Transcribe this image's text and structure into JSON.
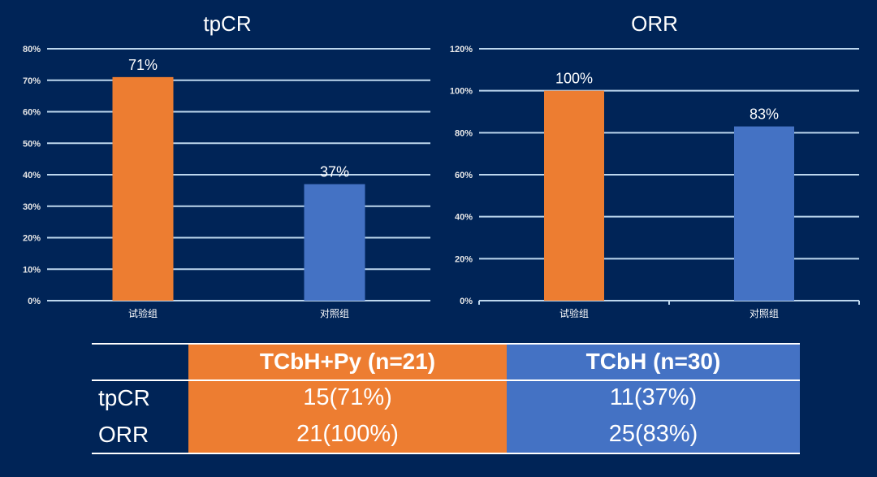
{
  "chart_data": [
    {
      "type": "bar",
      "title": "tpCR",
      "categories": [
        "试验组",
        "对照组"
      ],
      "values": [
        71,
        37
      ],
      "data_labels": [
        "71%",
        "37%"
      ],
      "colors": [
        "#ED7D31",
        "#4472C4"
      ],
      "ylim": [
        0,
        80
      ],
      "yticks": [
        "0%",
        "10%",
        "20%",
        "30%",
        "40%",
        "50%",
        "60%",
        "70%",
        "80%"
      ],
      "grid": true,
      "xlabel": "",
      "ylabel": ""
    },
    {
      "type": "bar",
      "title": "ORR",
      "categories": [
        "试验组",
        "对照组"
      ],
      "values": [
        100,
        83
      ],
      "data_labels": [
        "100%",
        "83%"
      ],
      "colors": [
        "#ED7D31",
        "#4472C4"
      ],
      "ylim": [
        0,
        120
      ],
      "yticks": [
        "0%",
        "20%",
        "40%",
        "60%",
        "80%",
        "100%",
        "120%"
      ],
      "grid": true,
      "xlabel": "",
      "ylabel": ""
    }
  ],
  "table": {
    "headers": [
      "",
      "TCbH+Py (n=21)",
      "TCbH (n=30)"
    ],
    "rows": [
      [
        "tpCR",
        "15(71%)",
        "11(37%)"
      ],
      [
        "ORR",
        "21(100%)",
        "25(83%)"
      ]
    ],
    "colors": {
      "treatment": "#ED7D31",
      "control": "#4472C4",
      "background": "#002457"
    }
  }
}
